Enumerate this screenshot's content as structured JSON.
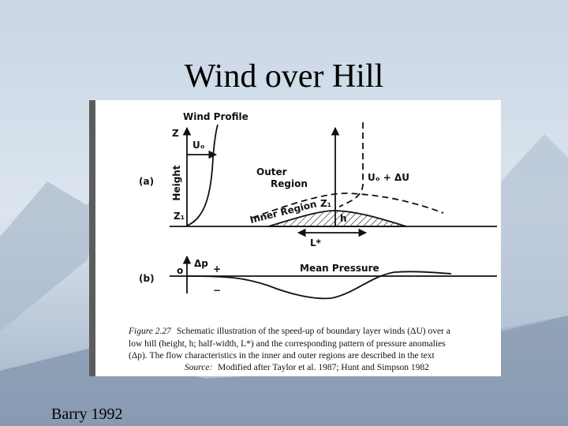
{
  "slide": {
    "title": "Wind over Hill",
    "credit": "Barry 1992"
  },
  "figure": {
    "labels": {
      "wind_profile": "Wind Profile",
      "z": "Z",
      "height": "Height",
      "u0": "Uₒ",
      "panel_a": "(a)",
      "z1_left": "Z₁",
      "outer_region": [
        "Outer",
        "Region"
      ],
      "inner_region": "Inner Region",
      "z1_right": "Z₁",
      "h": "h",
      "l_star": "L*",
      "u0_plus_du": "Uₒ + ΔU",
      "panel_b": "(b)",
      "origin": "o",
      "dp": "Δp",
      "plus": "+",
      "minus": "−",
      "mean_pressure": "Mean Pressure"
    },
    "caption": {
      "number": "Figure 2.27",
      "lines": [
        "Schematic illustration of the speed-up of boundary layer winds (ΔU) over a",
        "low hill (height, h; half-width, L*) and the corresponding pattern of pressure anomalies",
        "(Δp). The flow characteristics in the inner and outer regions are described in the text"
      ],
      "source_label": "Source:",
      "source": "Modified after Taylor et al. 1987; Hunt and Simpson 1982"
    }
  }
}
